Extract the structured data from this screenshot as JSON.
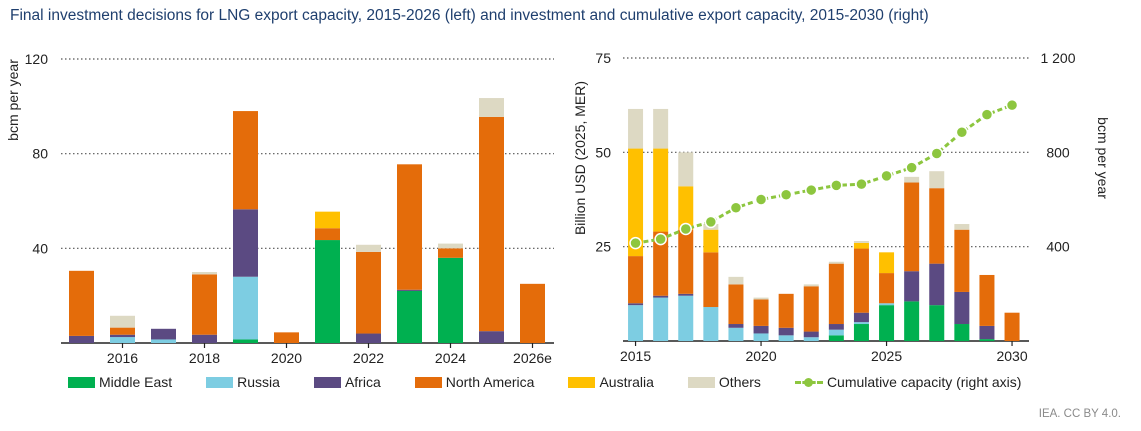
{
  "title": "Final investment decisions for LNG export capacity, 2015-2026 (left) and investment and cumulative export capacity, 2015-2030 (right)",
  "source": "IEA. CC BY 4.0.",
  "colors": {
    "Middle East": "#00b050",
    "Russia": "#7dcde2",
    "Africa": "#5b4a82",
    "North America": "#e46c0a",
    "Australia": "#ffc000",
    "Others": "#ddd9c3",
    "Cumulative": "#8dc63f"
  },
  "legend": [
    {
      "label": "Middle East",
      "key": "Middle East"
    },
    {
      "label": "Russia",
      "key": "Russia"
    },
    {
      "label": "Africa",
      "key": "Africa"
    },
    {
      "label": "North America",
      "key": "North America"
    },
    {
      "label": "Australia",
      "key": "Australia"
    },
    {
      "label": "Others",
      "key": "Others"
    },
    {
      "label": "Cumulative capacity (right axis)",
      "key": "Cumulative",
      "line": true
    }
  ],
  "chart_data": [
    {
      "type": "bar",
      "stacked": true,
      "ylabel": "bcm per year",
      "ylim": [
        0,
        120
      ],
      "yticks": [
        40,
        80,
        120
      ],
      "categories": [
        "2015",
        "2016",
        "2017",
        "2018",
        "2019",
        "2020",
        "2021",
        "2022",
        "2023",
        "2024",
        "2025",
        "2026e"
      ],
      "xtick_labels": [
        "2016",
        "2018",
        "2020",
        "2022",
        "2024",
        "2026e"
      ],
      "xtick_at": [
        "2016",
        "2018",
        "2020",
        "2022",
        "2024",
        "2026e"
      ],
      "series": [
        {
          "name": "Middle East",
          "values": [
            0,
            0,
            0,
            0,
            1.5,
            0,
            43.5,
            0,
            22,
            36,
            0,
            0
          ]
        },
        {
          "name": "Russia",
          "values": [
            0,
            2.5,
            1.5,
            0,
            26.5,
            0,
            0,
            0,
            0,
            0,
            0,
            0
          ]
        },
        {
          "name": "Africa",
          "values": [
            3,
            1,
            4.5,
            3.5,
            28.5,
            0,
            0,
            4,
            0.5,
            0,
            5,
            0
          ]
        },
        {
          "name": "North America",
          "values": [
            27.5,
            3,
            0,
            25.5,
            41.5,
            4.5,
            5,
            34.5,
            53,
            4,
            90.5,
            25
          ]
        },
        {
          "name": "Australia",
          "values": [
            0,
            0,
            0,
            0,
            0,
            0,
            7,
            0,
            0,
            0,
            0,
            0
          ]
        },
        {
          "name": "Others",
          "values": [
            0,
            5,
            0,
            1,
            0,
            0,
            0,
            3,
            0,
            2,
            8,
            0
          ]
        }
      ]
    },
    {
      "type": "bar",
      "stacked": true,
      "ylabel": "Billion USD (2025, MER)",
      "y2label": "bcm per year",
      "ylim": [
        0,
        75
      ],
      "yticks": [
        25,
        50,
        75
      ],
      "y2lim": [
        0,
        1200
      ],
      "y2ticks": [
        400,
        800,
        1200
      ],
      "y2tick_labels": [
        "400",
        "800",
        "1 200"
      ],
      "categories": [
        "2015",
        "2016",
        "2017",
        "2018",
        "2019",
        "2020",
        "2021",
        "2022",
        "2023",
        "2024",
        "2025",
        "2026",
        "2027",
        "2028",
        "2029",
        "2030"
      ],
      "xtick_labels": [
        "2015",
        "2020",
        "2025",
        "2030"
      ],
      "xtick_at": [
        "2015",
        "2020",
        "2025",
        "2030"
      ],
      "series": [
        {
          "name": "Middle East",
          "values": [
            0,
            0,
            0,
            0,
            0,
            0,
            0,
            0,
            1.5,
            4.5,
            9.5,
            10.5,
            9.5,
            4.5,
            0.5,
            0
          ]
        },
        {
          "name": "Russia",
          "values": [
            9.5,
            11.5,
            12,
            9,
            3.5,
            2,
            1.5,
            1,
            1.5,
            0.5,
            0.5,
            0,
            0,
            0,
            0,
            0
          ]
        },
        {
          "name": "Africa",
          "values": [
            0.5,
            0.5,
            0.5,
            0,
            1,
            2,
            2,
            1.5,
            1.5,
            2.5,
            0,
            8,
            11,
            8.5,
            3.5,
            0
          ]
        },
        {
          "name": "North America",
          "values": [
            12.5,
            17,
            17,
            14.5,
            10.5,
            7,
            9,
            12,
            16,
            17,
            8,
            23.5,
            20,
            16.5,
            13.5,
            7.5
          ]
        },
        {
          "name": "Australia",
          "values": [
            28.5,
            22,
            11.5,
            6,
            0,
            0,
            0,
            0,
            0,
            1.5,
            5.5,
            0,
            0,
            0,
            0,
            0
          ]
        },
        {
          "name": "Others",
          "values": [
            10.5,
            10.5,
            9,
            1.5,
            2,
            0.5,
            0,
            0.5,
            0.5,
            0.5,
            0,
            1.5,
            4.5,
            1.5,
            0,
            0
          ]
        },
        {
          "name": "Cumulative capacity (right axis)",
          "axis": "right",
          "type": "line",
          "values": [
            415,
            432,
            475,
            505,
            565,
            600,
            620,
            640,
            660,
            665,
            700,
            735,
            795,
            885,
            960,
            1000
          ]
        }
      ]
    }
  ]
}
